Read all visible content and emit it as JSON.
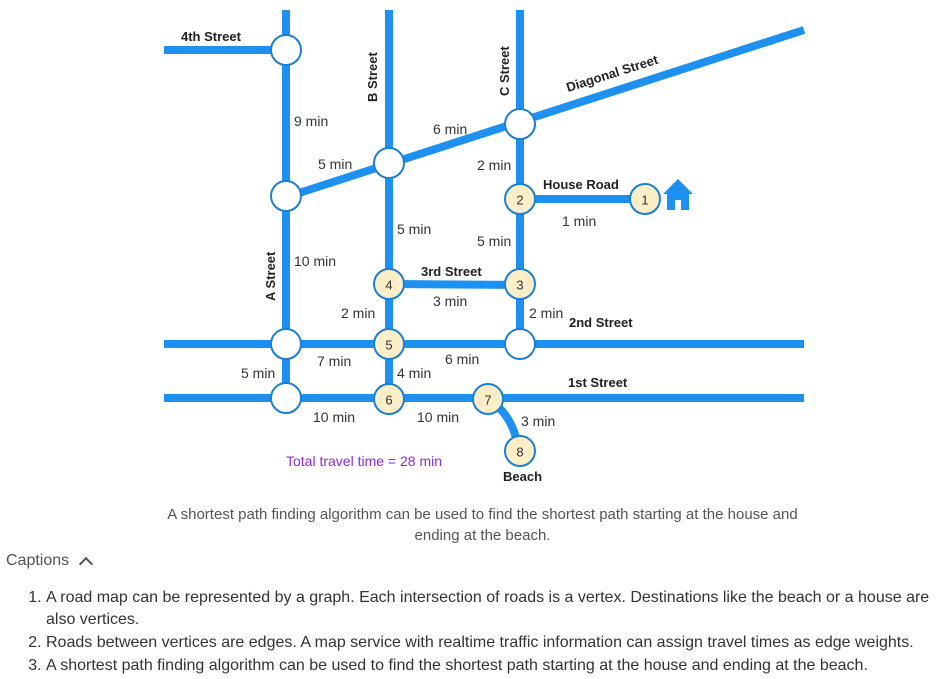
{
  "streets": {
    "fourth": "4th Street",
    "b": "B Street",
    "c": "C Street",
    "diagonal": "Diagonal Street",
    "house_road": "House Road",
    "a": "A Street",
    "third": "3rd Street",
    "second": "2nd Street",
    "first": "1st Street",
    "beach": "Beach"
  },
  "vertices": [
    "1",
    "2",
    "3",
    "4",
    "5",
    "6",
    "7",
    "8"
  ],
  "weights": {
    "a_top": "9 min",
    "diag_left": "5 min",
    "diag_mid": "6 min",
    "c_upper": "2 min",
    "house_road": "1 min",
    "b_mid": "5 min",
    "c_mid": "5 min",
    "a_mid": "10 min",
    "third_street": "3 min",
    "b_lower": "2 min",
    "c_lower": "2 min",
    "second_left": "7 min",
    "second_mid": "6 min",
    "a_bottom": "5 min",
    "b_bottom": "4 min",
    "first_left": "10 min",
    "first_mid": "10 min",
    "beach_road": "3 min"
  },
  "total": "Total travel time = 28 min",
  "colors": {
    "road": "#1e90f0",
    "vertex_path": "#fcefc7",
    "total": "#8a2be2"
  },
  "icons": {
    "house": "house-icon"
  },
  "figure_caption": "A shortest path finding algorithm can be used to find the shortest path starting at the house and ending at the beach.",
  "captions_label": "Captions",
  "captions": [
    "A road map can be represented by a graph. Each intersection of roads is a vertex. Destinations like the beach or a house are also vertices.",
    "Roads between vertices are edges. A map service with realtime traffic information can assign travel times as edge weights.",
    "A shortest path finding algorithm can be used to find the shortest path starting at the house and ending at the beach."
  ]
}
